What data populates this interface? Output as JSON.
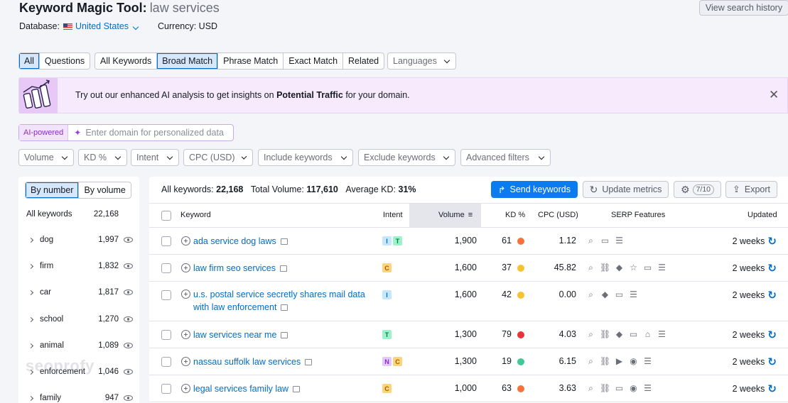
{
  "header": {
    "title": "Keyword Magic Tool:",
    "query": "law services",
    "history_button": "View search history"
  },
  "database": {
    "label": "Database:",
    "value": "United States",
    "currency": "Currency: USD"
  },
  "tabs_group1": [
    "All",
    "Questions"
  ],
  "tabs_group2": [
    "All Keywords",
    "Broad Match",
    "Phrase Match",
    "Exact Match",
    "Related"
  ],
  "languages": "Languages",
  "banner": {
    "text_before": "Try out our enhanced AI analysis to get insights on",
    "highlight": "Potential Traffic",
    "text_after": "for your domain."
  },
  "ai": {
    "tag": "AI-powered",
    "placeholder": "Enter domain for personalized data"
  },
  "filters": [
    "Volume",
    "KD %",
    "Intent",
    "CPC (USD)",
    "Include keywords",
    "Exclude keywords",
    "Advanced filters"
  ],
  "left_panel": {
    "toggle": [
      "By number",
      "By volume"
    ],
    "all_label": "All keywords",
    "all_count": "22,168",
    "groups": [
      {
        "name": "dog",
        "count": "1,997"
      },
      {
        "name": "firm",
        "count": "1,832"
      },
      {
        "name": "car",
        "count": "1,817"
      },
      {
        "name": "school",
        "count": "1,270"
      },
      {
        "name": "animal",
        "count": "1,089"
      },
      {
        "name": "enforcement",
        "count": "1,046"
      },
      {
        "name": "family",
        "count": "947"
      }
    ],
    "watermark": "seoprofy"
  },
  "summary": {
    "all_label": "All keywords:",
    "all_value": "22,168",
    "volume_label": "Total Volume:",
    "volume_value": "117,610",
    "kd_label": "Average KD:",
    "kd_value": "31%"
  },
  "toolbar": {
    "send": "Send keywords",
    "update": "Update metrics",
    "counter": "7/10",
    "export": "Export"
  },
  "table": {
    "headers": {
      "keyword": "Keyword",
      "intent": "Intent",
      "volume": "Volume",
      "kd": "KD %",
      "cpc": "CPC (USD)",
      "serp": "SERP Features",
      "updated": "Updated"
    },
    "rows": [
      {
        "keyword": [
          "ada service dog laws"
        ],
        "intents": [
          "I",
          "T"
        ],
        "volume": "1,900",
        "kd": "61",
        "kd_color": "#f4733c",
        "cpc": "1.12",
        "serp": [
          "⌕",
          "▭",
          "☰"
        ],
        "updated": "2 weeks"
      },
      {
        "keyword": [
          "law firm seo services"
        ],
        "intents": [
          "C"
        ],
        "volume": "1,600",
        "kd": "37",
        "kd_color": "#f5c230",
        "cpc": "45.82",
        "serp": [
          "⌕",
          "⛓",
          "◆",
          "☆",
          "▭",
          "☰"
        ],
        "updated": "2 weeks"
      },
      {
        "keyword": [
          "u.s. postal service secretly shares mail data",
          "with law enforcement"
        ],
        "intents": [
          "I"
        ],
        "volume": "1,600",
        "kd": "42",
        "kd_color": "#f5c230",
        "cpc": "0.00",
        "serp": [
          "⌕",
          "◆",
          "▭",
          "☰"
        ],
        "updated": "2 weeks"
      },
      {
        "keyword": [
          "law services near me"
        ],
        "intents": [
          "T"
        ],
        "volume": "1,300",
        "kd": "79",
        "kd_color": "#e8333a",
        "cpc": "4.03",
        "serp": [
          "⌕",
          "⛓",
          "◆",
          "▭",
          "⌂",
          "☰"
        ],
        "updated": "2 weeks"
      },
      {
        "keyword": [
          "nassau suffolk law services"
        ],
        "intents": [
          "N",
          "C"
        ],
        "volume": "1,300",
        "kd": "19",
        "kd_color": "#3ec996",
        "cpc": "6.15",
        "serp": [
          "⌕",
          "⛓",
          "▶",
          "◉",
          "☰"
        ],
        "updated": "2 weeks"
      },
      {
        "keyword": [
          "legal services family law"
        ],
        "intents": [
          "C"
        ],
        "volume": "1,000",
        "kd": "63",
        "kd_color": "#f4733c",
        "cpc": "3.63",
        "serp": [
          "⌕",
          "⛓",
          "▭",
          "◉",
          "☰"
        ],
        "updated": "2 weeks"
      }
    ]
  },
  "intent_colors": {
    "I": {
      "bg": "#c6e7fb",
      "fg": "#006dca"
    },
    "T": {
      "bg": "#9ef2c9",
      "fg": "#008150"
    },
    "C": {
      "bg": "#fcd57a",
      "fg": "#9a6100"
    },
    "N": {
      "bg": "#e2c9fb",
      "fg": "#8a2bc9"
    }
  }
}
